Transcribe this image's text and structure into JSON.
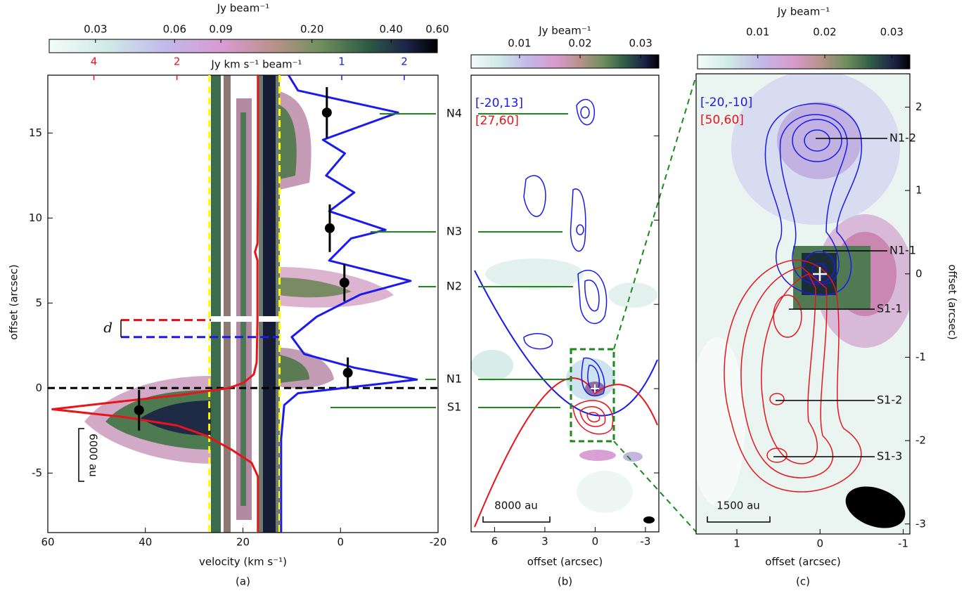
{
  "chart_data": [
    {
      "type": "pv",
      "caption": "(a)",
      "xlabel": "velocity (km s⁻¹)",
      "ylabel": "offset (arcsec)",
      "xlim": [
        60,
        -20
      ],
      "ylim": [
        -8.5,
        18.4
      ],
      "xticks": [
        60,
        40,
        20,
        0,
        -20
      ],
      "yticks": [
        -5,
        0,
        5,
        10,
        15
      ],
      "colorbar": {
        "label": "Jy beam⁻¹",
        "scale": "log",
        "lim": [
          0.02,
          0.6
        ],
        "ticks": [
          0.03,
          0.06,
          0.09,
          {
            "value": 0.2,
            "label": "0.20"
          },
          {
            "value": 0.4,
            "label": "0.40"
          },
          {
            "value": 0.6,
            "label": "0.60"
          }
        ]
      },
      "profile_axis_label": "Jy km s⁻¹ beam⁻¹",
      "profiles": [
        {
          "color": "#e8141b",
          "xlim": [
            5.11,
            -4.29
          ],
          "xticks": [
            4,
            2
          ],
          "offsets": [
            18.4,
            12,
            8.5,
            8,
            7.5,
            4,
            1.5,
            0.8,
            0.3,
            0,
            -0.4,
            -0.8,
            -1.25,
            -1.7,
            -2.2,
            -2.8,
            -3.6,
            -4.4,
            -5.2,
            -8.5
          ],
          "values": [
            0.05,
            0.05,
            0.06,
            0.12,
            0.06,
            0.06,
            0.08,
            0.15,
            0.4,
            0.75,
            1.9,
            3.4,
            5.0,
            3.3,
            2.0,
            1.3,
            0.7,
            0.2,
            0.05,
            0.05
          ]
        },
        {
          "color": "#1a1af0",
          "xlim": [
            -3.7,
            2.54
          ],
          "xticks": [
            1,
            2
          ],
          "offsets": [
            -8.5,
            -3,
            -1,
            -0.3,
            0.2,
            0.5,
            1.2,
            2.0,
            3.0,
            4.2,
            5.5,
            6.3,
            7.5,
            8.8,
            9.3,
            10.4,
            11.5,
            12.5,
            13.8,
            14.6,
            16.2,
            17.5,
            18.4
          ],
          "values": [
            0.03,
            0.03,
            0.08,
            0.3,
            1.5,
            2.2,
            1.2,
            0.4,
            0.2,
            0.6,
            1.3,
            2.1,
            0.8,
            1.15,
            1.7,
            0.8,
            1.2,
            0.75,
            1.05,
            0.7,
            1.9,
            0.3,
            0.15
          ]
        }
      ],
      "points": {
        "color": "#000000",
        "x": [
          41.3,
          2.8,
          2.2,
          -0.8,
          -1.5
        ],
        "y": [
          -1.3,
          16.2,
          9.4,
          6.2,
          0.9
        ],
        "yerr": [
          1.2,
          1.5,
          1.4,
          1.1,
          0.9
        ]
      },
      "vlines": {
        "color": "#ffff00",
        "values": [
          26.9,
          12.5
        ]
      },
      "hline": {
        "color": "#000000",
        "value": 0
      },
      "separation": {
        "label": "d",
        "values": [
          4.0,
          3.0
        ],
        "colors": [
          "#e8141b",
          "#1a1af0"
        ]
      },
      "scale_bar": "6000 au"
    },
    {
      "type": "map",
      "caption": "(b)",
      "xlabel": "offset (arcsec)",
      "xlim": [
        7.4,
        -3.8
      ],
      "ylim": [
        -8.5,
        18.6
      ],
      "xticks": [
        6,
        3,
        0,
        -3
      ],
      "yticks": [
        -5,
        0,
        5,
        10,
        15
      ],
      "ytick_labels": false,
      "colorbar": {
        "label": "Jy beam⁻¹",
        "scale": "linear",
        "lim": [
          0.002,
          0.033
        ],
        "ticks": [
          0.01,
          0.02,
          0.03
        ]
      },
      "ranges": [
        {
          "label": "[-20,13]",
          "color": "#1a1af0"
        },
        {
          "label": "[27,60]",
          "color": "#e8141b"
        }
      ],
      "sources": [
        "N4",
        "N3",
        "N2",
        "N1",
        "S1"
      ],
      "scale_bar": "8000 au"
    },
    {
      "type": "map",
      "caption": "(c)",
      "xlabel": "offset (arcsec)",
      "ylabel": "offset (arcsec)",
      "xlim": [
        1.49,
        -1.08
      ],
      "ylim": [
        -3.12,
        2.4
      ],
      "xticks": [
        1,
        0,
        -1
      ],
      "yticks": [
        -3,
        -2,
        -1,
        0,
        1,
        2
      ],
      "ytick_labels": true,
      "colorbar": {
        "label": "Jy beam⁻¹",
        "scale": "linear",
        "lim": [
          0.001,
          0.0327
        ],
        "ticks": [
          0.01,
          0.02,
          0.03
        ]
      },
      "ranges": [
        {
          "label": "[-20,-10]",
          "color": "#1a1af0"
        },
        {
          "label": "[50,60]",
          "color": "#e8141b"
        }
      ],
      "sources": [
        "N1-2",
        "N1-1",
        "S1-1",
        "S1-2",
        "S1-3"
      ],
      "scale_bar": "1500 au"
    }
  ]
}
